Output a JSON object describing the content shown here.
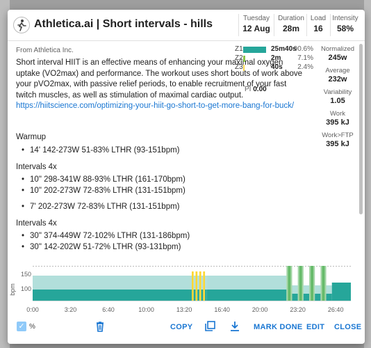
{
  "header": {
    "title": "Athletica.ai | Short intervals - hills",
    "stats": [
      {
        "label": "Tuesday",
        "value": "12 Aug"
      },
      {
        "label": "Duration",
        "value": "28m"
      },
      {
        "label": "Load",
        "value": "16"
      },
      {
        "label": "Intensity",
        "value": "58%"
      }
    ]
  },
  "content": {
    "from": "From Athletica Inc.",
    "description": "Short interval HIIT is an effective means of enhancing your maximal oxygen uptake (VO2max) and performance. The workout uses short bouts of work above your pVO2max, with passive relief periods, to enable recruitment of your fast twitch muscles, as well as stimulation of maximal cardiac output. ",
    "link": "https://hiitscience.com/optimizing-your-hiit-go-short-to-get-more-bang-for-buck/",
    "zones": [
      {
        "label": "Z1",
        "time": "25m40s",
        "percent": "90.6%",
        "fraction": 0.906,
        "color": "#26a69a"
      },
      {
        "label": "Z2",
        "time": "2m",
        "percent": "7.1%",
        "fraction": 0.071,
        "color": "#8bc34a"
      },
      {
        "label": "Z3",
        "time": "40s",
        "percent": "2.4%",
        "fraction": 0.024,
        "color": "#ffd54f"
      }
    ],
    "pi": {
      "label": "PI",
      "value": "0.00"
    },
    "right_stats": [
      {
        "label": "Normalized",
        "value": "245w"
      },
      {
        "label": "Average",
        "value": "232w"
      },
      {
        "label": "Variability",
        "value": "1.05"
      },
      {
        "label": "Work",
        "value": "395 kJ"
      },
      {
        "label": "Work>FTP",
        "value": "395 kJ"
      }
    ],
    "warmup": {
      "title": "Warmup",
      "steps": [
        "14' 142-273W 51-83% LTHR (93-151bpm)"
      ]
    },
    "intervals1": {
      "title": "Intervals 4x",
      "steps": [
        "10\" 298-341W 88-93% LTHR (161-170bpm)",
        "10\" 202-273W 72-83% LTHR (131-151bpm)"
      ],
      "after": "7' 202-273W 72-83% LTHR (131-151bpm)"
    },
    "intervals2": {
      "title": "Intervals 4x",
      "steps": [
        "30\" 374-449W 72-102% LTHR (131-186bpm)",
        "30\" 142-202W 51-72% LTHR (93-131bpm)"
      ]
    }
  },
  "chart_data": {
    "type": "area",
    "ylabel": "bpm",
    "yticks": [
      100,
      150
    ],
    "xticks": [
      "0:00",
      "3:20",
      "6:40",
      "10:00",
      "13:20",
      "16:40",
      "20:00",
      "23:20",
      "26:40"
    ],
    "colors": {
      "z1": "#26a69a",
      "z2": "#66bb6a",
      "z3": "#fdd835",
      "upper": "#b2dfdb"
    }
  },
  "footer": {
    "percent_label": "%",
    "copy": "COPY",
    "mark_done": "MARK DONE",
    "edit": "EDIT",
    "close": "CLOSE"
  }
}
